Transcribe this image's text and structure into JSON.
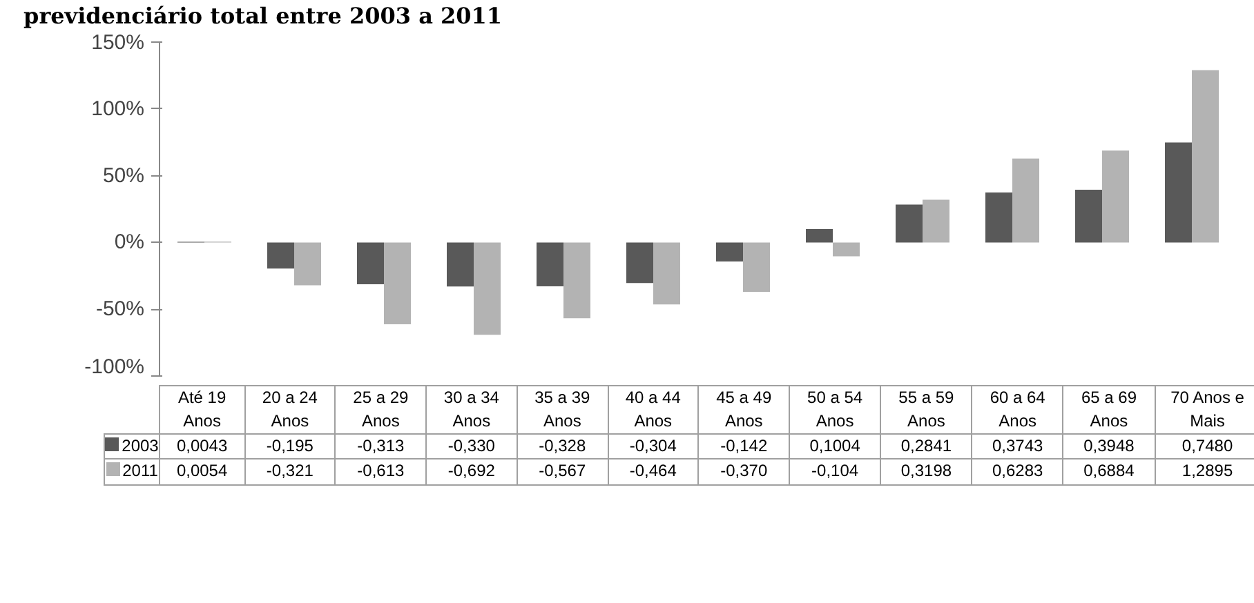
{
  "chart_data": {
    "type": "bar",
    "title": "previdenciário total entre 2003 a 2011",
    "categories": [
      "Até 19 Anos",
      "20 a 24 Anos",
      "25 a 29 Anos",
      "30 a 34 Anos",
      "35 a 39 Anos",
      "40 a 44 Anos",
      "45 a 49 Anos",
      "50 a 54 Anos",
      "55 a 59 Anos",
      "60 a 64 Anos",
      "65 a 69 Anos",
      "70 Anos e Mais"
    ],
    "series": [
      {
        "name": "2003",
        "color": "#595959",
        "values": [
          0.0043,
          -0.195,
          -0.313,
          -0.33,
          -0.328,
          -0.304,
          -0.142,
          0.1004,
          0.2841,
          0.3743,
          0.3948,
          0.748
        ],
        "value_labels": [
          "0,0043",
          "-0,195",
          "-0,313",
          "-0,330",
          "-0,328",
          "-0,304",
          "-0,142",
          "0,1004",
          "0,2841",
          "0,3743",
          "0,3948",
          "0,7480"
        ]
      },
      {
        "name": "2011",
        "color": "#b3b3b3",
        "values": [
          0.0054,
          -0.321,
          -0.613,
          -0.692,
          -0.567,
          -0.464,
          -0.37,
          -0.104,
          0.3198,
          0.6283,
          0.6884,
          1.2895
        ],
        "value_labels": [
          "0,0054",
          "-0,321",
          "-0,613",
          "-0,692",
          "-0,567",
          "-0,464",
          "-0,370",
          "-0,104",
          "0,3198",
          "0,6283",
          "0,6884",
          "1,2895"
        ]
      }
    ],
    "ylim": [
      -1,
      1.5
    ],
    "yticks": [
      {
        "value": -1,
        "label": "-100%"
      },
      {
        "value": -0.5,
        "label": "-50%"
      },
      {
        "value": 0,
        "label": "0%"
      },
      {
        "value": 0.5,
        "label": "50%"
      },
      {
        "value": 1,
        "label": "100%"
      },
      {
        "value": 1.5,
        "label": "150%"
      }
    ],
    "legend": "bottom"
  }
}
